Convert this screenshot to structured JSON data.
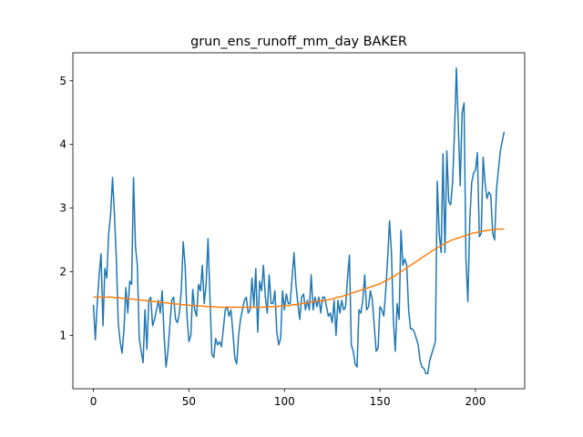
{
  "chart_data": {
    "type": "line",
    "title": "grun_ens_runoff_mm_day BAKER",
    "x": [
      0,
      1,
      2,
      3,
      4,
      5,
      6,
      7,
      8,
      9,
      10,
      11,
      12,
      13,
      14,
      15,
      16,
      17,
      18,
      19,
      20,
      21,
      22,
      23,
      24,
      25,
      26,
      27,
      28,
      29,
      30,
      31,
      32,
      33,
      34,
      35,
      36,
      37,
      38,
      39,
      40,
      41,
      42,
      43,
      44,
      45,
      46,
      47,
      48,
      49,
      50,
      51,
      52,
      53,
      54,
      55,
      56,
      57,
      58,
      59,
      60,
      61,
      62,
      63,
      64,
      65,
      66,
      67,
      68,
      69,
      70,
      71,
      72,
      73,
      74,
      75,
      76,
      77,
      78,
      79,
      80,
      81,
      82,
      83,
      84,
      85,
      86,
      87,
      88,
      89,
      90,
      91,
      92,
      93,
      94,
      95,
      96,
      97,
      98,
      99,
      100,
      101,
      102,
      103,
      104,
      105,
      106,
      107,
      108,
      109,
      110,
      111,
      112,
      113,
      114,
      115,
      116,
      117,
      118,
      119,
      120,
      121,
      122,
      123,
      124,
      125,
      126,
      127,
      128,
      129,
      130,
      131,
      132,
      133,
      134,
      135,
      136,
      137,
      138,
      139,
      140,
      141,
      142,
      143,
      144,
      145,
      146,
      147,
      148,
      149,
      150,
      151,
      152,
      153,
      154,
      155,
      156,
      157,
      158,
      159,
      160,
      161,
      162,
      163,
      164,
      165,
      166,
      167,
      168,
      169,
      170,
      171,
      172,
      173,
      174,
      175,
      176,
      177,
      178,
      179,
      180,
      181,
      182,
      183,
      184,
      185,
      186,
      187,
      188,
      189,
      190,
      191,
      192,
      193,
      194,
      195,
      196,
      197,
      198,
      199,
      200,
      201,
      202,
      203,
      204,
      205,
      206,
      207,
      208,
      209,
      210,
      211,
      212,
      213,
      214,
      215
    ],
    "series": [
      {
        "color": "#1f77b4",
        "values": [
          1.48,
          0.93,
          1.5,
          1.95,
          2.28,
          1.15,
          2.05,
          1.9,
          2.6,
          2.9,
          3.48,
          2.9,
          2.2,
          1.2,
          0.9,
          0.72,
          1.1,
          1.75,
          1.35,
          1.85,
          1.8,
          3.48,
          2.4,
          2.1,
          0.95,
          0.75,
          0.57,
          1.4,
          0.78,
          1.55,
          1.6,
          1.15,
          1.25,
          1.4,
          1.55,
          1.35,
          1.7,
          1.0,
          0.5,
          0.75,
          1.15,
          1.55,
          1.6,
          1.25,
          1.2,
          1.35,
          1.7,
          2.47,
          2.1,
          1.3,
          0.9,
          1.0,
          1.72,
          1.4,
          1.3,
          1.8,
          1.7,
          2.1,
          1.5,
          1.8,
          2.52,
          1.6,
          0.7,
          0.65,
          0.95,
          0.85,
          0.9,
          0.82,
          1.1,
          1.4,
          1.45,
          1.3,
          1.4,
          1.05,
          0.65,
          0.55,
          1.0,
          1.25,
          1.4,
          1.55,
          1.6,
          1.35,
          1.4,
          1.9,
          1.45,
          2.05,
          1.05,
          1.85,
          1.7,
          2.1,
          1.6,
          1.35,
          1.95,
          1.5,
          1.5,
          1.7,
          1.05,
          0.85,
          0.95,
          1.7,
          1.4,
          1.65,
          1.5,
          1.5,
          1.9,
          2.3,
          1.8,
          1.5,
          1.25,
          1.6,
          1.65,
          1.4,
          1.55,
          1.4,
          1.95,
          1.4,
          1.6,
          1.45,
          1.6,
          1.35,
          1.6,
          1.6,
          1.45,
          1.3,
          1.35,
          1.2,
          1.55,
          1.0,
          1.55,
          1.35,
          1.55,
          1.4,
          1.45,
          1.9,
          2.26,
          0.85,
          0.75,
          0.55,
          0.5,
          1.4,
          1.35,
          1.55,
          1.95,
          1.4,
          1.45,
          1.7,
          1.55,
          1.15,
          0.75,
          0.8,
          1.45,
          1.4,
          1.3,
          1.7,
          2.2,
          2.8,
          2.3,
          1.25,
          0.75,
          1.5,
          1.25,
          2.65,
          2.1,
          2.2,
          2.1,
          1.4,
          1.1,
          1.1,
          1.05,
          0.95,
          0.85,
          0.6,
          0.5,
          0.48,
          0.4,
          0.4,
          0.6,
          0.7,
          0.8,
          0.9,
          3.42,
          2.6,
          2.3,
          3.85,
          2.3,
          3.9,
          3.1,
          3.05,
          3.4,
          4.2,
          5.2,
          4.3,
          3.35,
          4.5,
          4.65,
          2.2,
          1.53,
          2.8,
          3.4,
          3.55,
          3.6,
          3.87,
          2.55,
          2.6,
          3.8,
          3.4,
          3.15,
          3.25,
          3.2,
          2.6,
          2.5,
          3.3,
          3.6,
          3.9,
          4.05,
          4.2
        ]
      },
      {
        "color": "#ff7f0e",
        "values": [
          1.6,
          1.6,
          1.6,
          1.6,
          1.6,
          1.6,
          1.6,
          1.6,
          1.6,
          1.6,
          1.6,
          1.59,
          1.59,
          1.59,
          1.59,
          1.58,
          1.58,
          1.58,
          1.58,
          1.57,
          1.57,
          1.57,
          1.56,
          1.56,
          1.56,
          1.55,
          1.55,
          1.55,
          1.54,
          1.54,
          1.54,
          1.53,
          1.53,
          1.53,
          1.52,
          1.52,
          1.52,
          1.51,
          1.51,
          1.51,
          1.5,
          1.5,
          1.5,
          1.49,
          1.49,
          1.49,
          1.48,
          1.48,
          1.48,
          1.48,
          1.47,
          1.47,
          1.47,
          1.47,
          1.46,
          1.46,
          1.46,
          1.46,
          1.46,
          1.45,
          1.45,
          1.45,
          1.45,
          1.45,
          1.45,
          1.44,
          1.44,
          1.44,
          1.44,
          1.44,
          1.44,
          1.44,
          1.44,
          1.44,
          1.44,
          1.44,
          1.44,
          1.44,
          1.44,
          1.44,
          1.44,
          1.44,
          1.44,
          1.44,
          1.44,
          1.44,
          1.44,
          1.44,
          1.44,
          1.44,
          1.44,
          1.45,
          1.45,
          1.45,
          1.45,
          1.45,
          1.45,
          1.46,
          1.46,
          1.46,
          1.46,
          1.47,
          1.47,
          1.47,
          1.48,
          1.48,
          1.48,
          1.49,
          1.49,
          1.5,
          1.5,
          1.51,
          1.51,
          1.52,
          1.52,
          1.53,
          1.53,
          1.54,
          1.54,
          1.54,
          1.54,
          1.55,
          1.55,
          1.56,
          1.57,
          1.57,
          1.58,
          1.59,
          1.6,
          1.6,
          1.61,
          1.62,
          1.63,
          1.64,
          1.65,
          1.66,
          1.67,
          1.68,
          1.69,
          1.7,
          1.71,
          1.72,
          1.73,
          1.74,
          1.75,
          1.76,
          1.77,
          1.78,
          1.79,
          1.8,
          1.81,
          1.83,
          1.84,
          1.86,
          1.87,
          1.89,
          1.91,
          1.92,
          1.94,
          1.96,
          1.98,
          2.0,
          2.02,
          2.04,
          2.06,
          2.08,
          2.1,
          2.12,
          2.14,
          2.16,
          2.18,
          2.2,
          2.22,
          2.24,
          2.26,
          2.28,
          2.3,
          2.32,
          2.34,
          2.36,
          2.38,
          2.39,
          2.41,
          2.43,
          2.44,
          2.46,
          2.47,
          2.49,
          2.5,
          2.51,
          2.52,
          2.53,
          2.54,
          2.55,
          2.56,
          2.57,
          2.58,
          2.59,
          2.6,
          2.61,
          2.61,
          2.62,
          2.63,
          2.63,
          2.64,
          2.64,
          2.65,
          2.65,
          2.66,
          2.66,
          2.66,
          2.67,
          2.67,
          2.67,
          2.67,
          2.67
        ]
      }
    ],
    "xlim": [
      -10.75,
      225.75
    ],
    "ylim": [
      0.16,
      5.44
    ],
    "xticks": [
      0,
      50,
      100,
      150,
      200
    ],
    "yticks": [
      1,
      2,
      3,
      4,
      5
    ],
    "grid": false
  }
}
